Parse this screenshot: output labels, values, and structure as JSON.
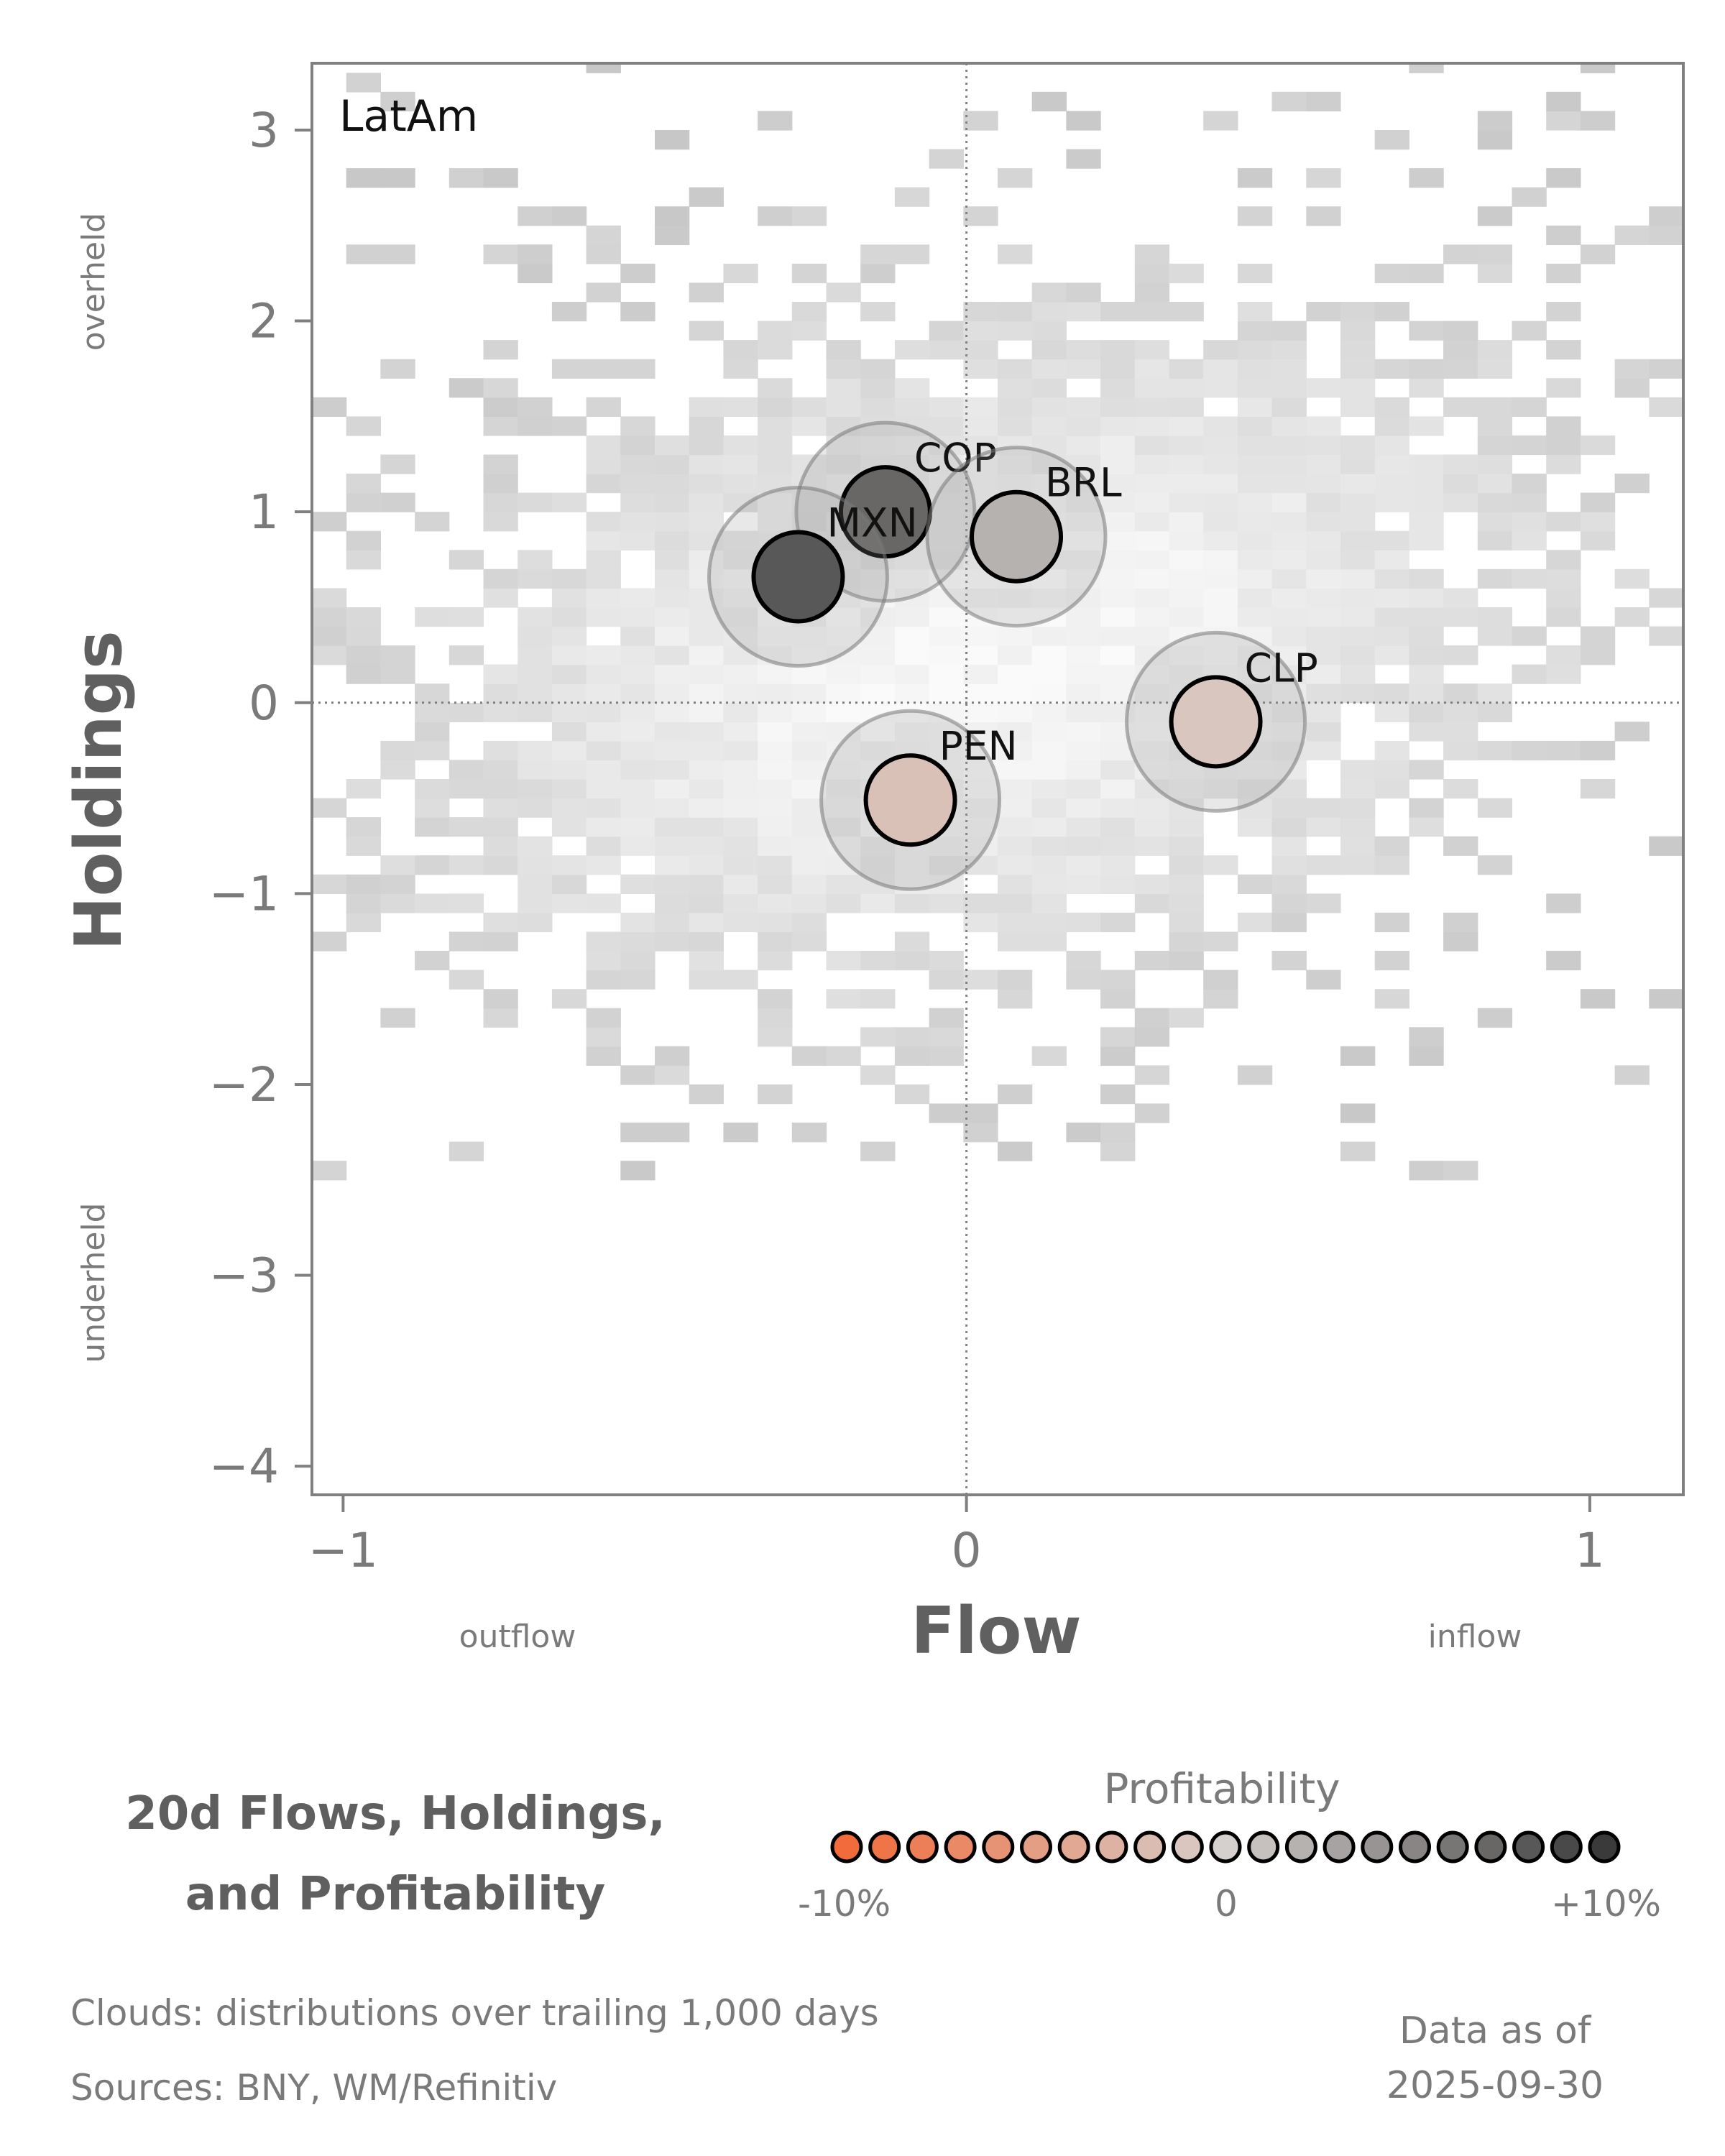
{
  "chart_data": {
    "type": "scatter",
    "panel_label": "LatAm",
    "xlabel": "Flow",
    "ylabel": "Holdings",
    "xlim": [
      -1.05,
      1.15
    ],
    "ylim": [
      -4.15,
      3.35
    ],
    "x_ticks": [
      -1,
      0,
      1
    ],
    "x_tick_labels": [
      "−1",
      "0",
      "1"
    ],
    "y_ticks": [
      3,
      2,
      1,
      0,
      -1,
      -2,
      -3,
      -4
    ],
    "y_tick_labels": [
      "3",
      "2",
      "1",
      "0",
      "−1",
      "−2",
      "−3",
      "−4"
    ],
    "x_side_labels": {
      "left": "outflow",
      "right": "inflow"
    },
    "y_side_labels": {
      "top": "overheld",
      "bottom": "underheld"
    },
    "reference_lines": {
      "x": 0,
      "y": 0,
      "style": "dotted"
    },
    "grid": false,
    "background": "2D histogram clouds of trailing distributions (grayscale)",
    "points": [
      {
        "label": "COP",
        "x": -0.13,
        "y": 1.0,
        "profitability": 0.07
      },
      {
        "label": "MXN",
        "x": -0.27,
        "y": 0.66,
        "profitability": 0.08
      },
      {
        "label": "BRL",
        "x": 0.08,
        "y": 0.87,
        "profitability": 0.02
      },
      {
        "label": "CLP",
        "x": 0.4,
        "y": -0.1,
        "profitability": -0.01
      },
      {
        "label": "PEN",
        "x": -0.09,
        "y": -0.51,
        "profitability": -0.015
      }
    ],
    "colorbar": {
      "title": "Profitability",
      "tick_labels": [
        "-10%",
        "0",
        "+10%"
      ],
      "range": [
        -0.1,
        0.1
      ],
      "low_color": "#f26b3a",
      "mid_color": "#d5d0ce",
      "high_color": "#3a3a3a"
    }
  },
  "heading": {
    "line1": "20d Flows, Holdings,",
    "line2": "and Profitability"
  },
  "footer": {
    "clouds_note": "Clouds:  distributions over trailing 1,000 days",
    "sources": "Sources:  BNY, WM/Refinitiv",
    "as_of_label": "Data as of",
    "as_of_date": "2025-09-30"
  }
}
